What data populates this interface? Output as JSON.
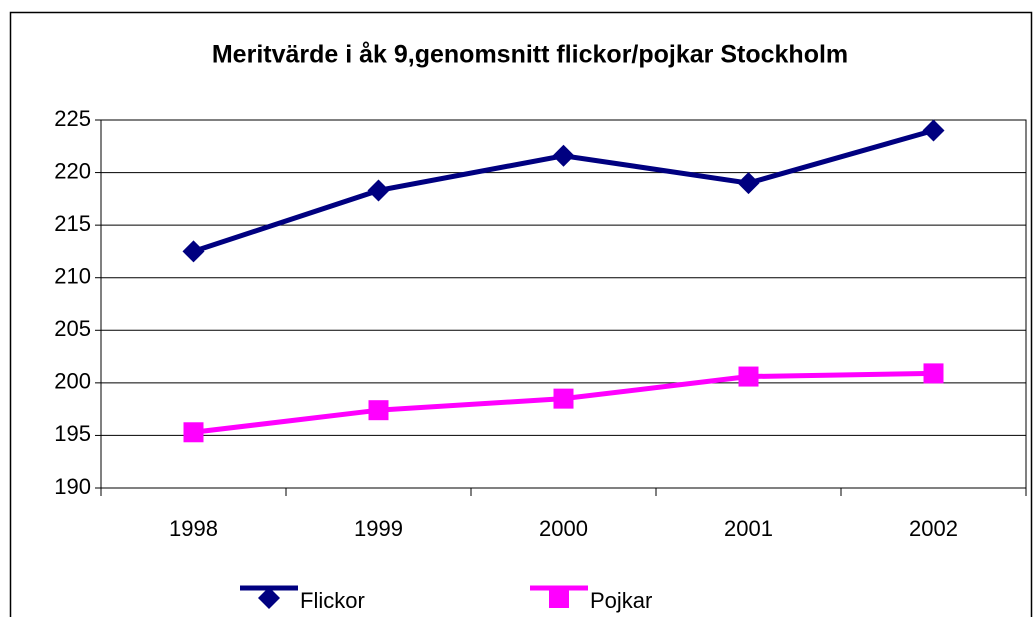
{
  "chart_data": {
    "type": "line",
    "title": "Meritvärde i åk 9,genomsnitt flickor/pojkar Stockholm",
    "categories": [
      "1998",
      "1999",
      "2000",
      "2001",
      "2002"
    ],
    "series": [
      {
        "name": "Flickor",
        "color": "#000080",
        "marker": "diamond",
        "values": [
          212.5,
          218.3,
          221.6,
          219.0,
          224.0
        ]
      },
      {
        "name": "Pojkar",
        "color": "#ff00ff",
        "marker": "square",
        "values": [
          195.3,
          197.4,
          198.5,
          200.6,
          200.9
        ]
      }
    ],
    "ylim": [
      190,
      225
    ],
    "yticks": [
      190,
      195,
      200,
      205,
      210,
      215,
      220,
      225
    ],
    "grid": true,
    "legend": "bottom"
  }
}
